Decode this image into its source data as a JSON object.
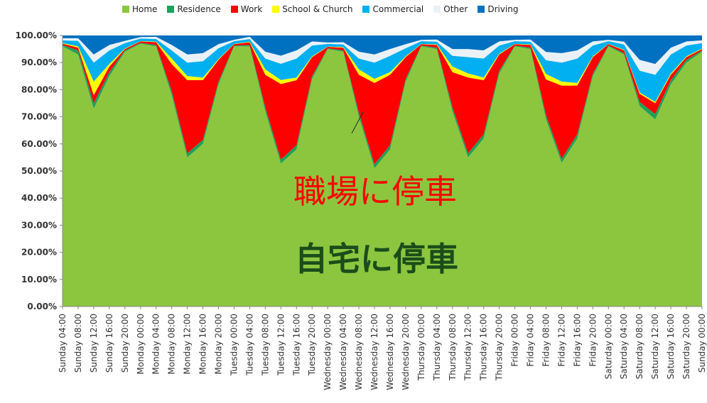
{
  "chart_data": {
    "type": "area",
    "stacked": true,
    "percent": true,
    "ylim": [
      0,
      100
    ],
    "y_ticks": [
      "0.00%",
      "10.00%",
      "20.00%",
      "30.00%",
      "40.00%",
      "50.00%",
      "60.00%",
      "70.00%",
      "80.00%",
      "90.00%",
      "100.00%"
    ],
    "categories": [
      "Sunday 04:00",
      "Sunday 08:00",
      "Sunday 12:00",
      "Sunday 16:00",
      "Sunday 20:00",
      "Monday 00:00",
      "Monday 04:00",
      "Monday 08:00",
      "Monday 12:00",
      "Monday 16:00",
      "Monday 20:00",
      "Tuesday 00:00",
      "Tuesday 04:00",
      "Tuesday 08:00",
      "Tuesday 12:00",
      "Tuesday 16:00",
      "Tuesday 20:00",
      "Wednesday 00:00",
      "Wednesday 04:00",
      "Wednesday 08:00",
      "Wednesday 12:00",
      "Wednesday 16:00",
      "Wednesday 20:00",
      "Thursday 00:00",
      "Thursday 04:00",
      "Thursday 08:00",
      "Thursday 12:00",
      "Thursday 16:00",
      "Thursday 20:00",
      "Friday 00:00",
      "Friday 04:00",
      "Friday 08:00",
      "Friday 12:00",
      "Friday 16:00",
      "Friday 20:00",
      "Saturday 00:00",
      "Saturday 04:00",
      "Saturday 08:00",
      "Saturday 12:00",
      "Saturday 16:00",
      "Saturday 20:00",
      "Sunday 00:00"
    ],
    "series": [
      {
        "name": "Home",
        "color": "#8cc63f",
        "values": [
          96,
          93,
          73,
          85,
          94,
          97,
          96,
          78,
          55,
          60,
          82,
          96,
          95,
          72,
          53,
          58,
          84,
          95,
          94,
          70,
          51,
          58,
          83,
          96,
          95,
          72,
          55,
          62,
          86,
          96,
          95,
          68,
          53,
          62,
          85,
          96,
          93,
          74,
          69,
          82,
          90,
          94
        ]
      },
      {
        "name": "Residence",
        "color": "#1fa05a",
        "values": [
          0.5,
          1.5,
          2.0,
          1.5,
          0.5,
          0.3,
          0.5,
          1.5,
          1.5,
          1.5,
          1.0,
          0.3,
          0.5,
          1.5,
          1.5,
          1.5,
          1.0,
          0.3,
          0.5,
          1.5,
          1.5,
          1.5,
          1.0,
          0.3,
          0.5,
          1.5,
          1.5,
          1.5,
          1.0,
          0.3,
          0.5,
          1.5,
          1.5,
          1.5,
          1.0,
          0.3,
          0.5,
          1.5,
          2.0,
          1.5,
          1.0,
          0.5
        ]
      },
      {
        "name": "Work",
        "color": "#ff0000",
        "values": [
          0.5,
          1,
          3,
          2,
          0.5,
          0.5,
          1,
          10,
          27,
          22,
          8,
          0.5,
          1,
          12,
          28,
          24,
          7,
          0.5,
          1,
          14,
          30,
          26,
          8,
          0.5,
          1,
          13,
          28,
          20,
          6,
          0.5,
          1,
          13,
          27,
          18,
          6,
          0.5,
          1,
          3,
          4,
          2,
          1,
          0.5
        ]
      },
      {
        "name": "School & Church",
        "color": "#ffff00",
        "values": [
          0.2,
          0.5,
          5,
          1,
          0.2,
          0.1,
          0.2,
          2,
          1.5,
          1,
          0.3,
          0.1,
          0.2,
          2,
          1.5,
          1,
          0.3,
          0.1,
          0.2,
          2,
          1.5,
          1,
          0.3,
          0.1,
          0.2,
          2,
          1.5,
          1,
          0.3,
          0.1,
          0.2,
          2,
          1.5,
          1,
          0.3,
          0.1,
          0.2,
          0.5,
          0.5,
          0.5,
          0.3,
          0.2
        ]
      },
      {
        "name": "Commercial",
        "color": "#00b0f0",
        "values": [
          1,
          2,
          7,
          5,
          2,
          1,
          1,
          3,
          5,
          6,
          4,
          1,
          1,
          4,
          6,
          7,
          4,
          1,
          1,
          4,
          6,
          6,
          3,
          1,
          1,
          4,
          6,
          7,
          3,
          1,
          1,
          5,
          7,
          9,
          4,
          1,
          2,
          8,
          10,
          7,
          4,
          2
        ]
      },
      {
        "name": "Other",
        "color": "#eaf2f8",
        "values": [
          0.8,
          1,
          3,
          2,
          0.8,
          0.5,
          0.8,
          2,
          3,
          3,
          1.5,
          0.5,
          0.8,
          2.5,
          3,
          3,
          1.5,
          0.5,
          0.8,
          2.5,
          3,
          2.5,
          1.5,
          0.5,
          0.8,
          2.5,
          3,
          3,
          1.5,
          0.5,
          0.8,
          3,
          3.5,
          3,
          1.5,
          0.5,
          1,
          4,
          4,
          2.5,
          1.5,
          1
        ]
      },
      {
        "name": "Driving",
        "color": "#0070c0",
        "values": [
          1,
          1,
          7,
          3.5,
          2,
          0.6,
          0.5,
          3.5,
          7,
          6.5,
          3.2,
          1.6,
          0.5,
          6,
          7.5,
          5.5,
          2.2,
          2.6,
          2.5,
          6,
          7,
          5,
          3.2,
          1.6,
          1.5,
          5,
          5,
          5.5,
          2.2,
          1.6,
          1.5,
          6,
          6.5,
          5.5,
          2.2,
          1.6,
          2.3,
          9,
          10.5,
          4.5,
          2.2,
          1.8
        ]
      }
    ],
    "annotations": [
      {
        "text": "職場に停車",
        "color": "#ff0000",
        "points_to": "Work",
        "at_category": "Wednesday 08:00",
        "at_value": 60
      },
      {
        "text": "自宅に停車",
        "color": "#1a4d1a",
        "points_to": "Home"
      }
    ]
  }
}
